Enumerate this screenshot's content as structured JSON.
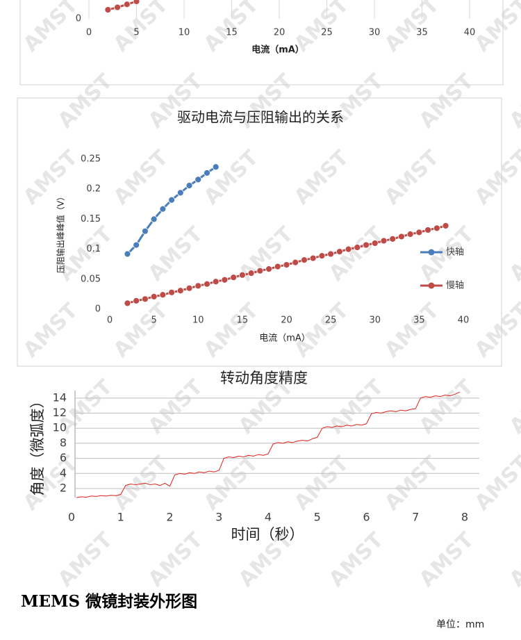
{
  "chart_data": [
    {
      "type": "line",
      "markers": true,
      "x_label": "电流（mA）",
      "xlim": [
        0,
        40
      ],
      "xticks": [
        0,
        5,
        10,
        15,
        20,
        25,
        30,
        35,
        40
      ],
      "ylim": [
        0,
        0.25
      ],
      "yticks": [
        0
      ],
      "grid_x": true,
      "series": [
        {
          "color": "#be4b48",
          "x": [
            2,
            3,
            4,
            5
          ],
          "values": [
            0.015,
            0.019,
            0.024,
            0.029
          ]
        }
      ]
    },
    {
      "type": "line",
      "markers": true,
      "title": "驱动电流与压阻输出的关系",
      "x_label": "电流（mA）",
      "y_label": "压阻输出峰峰值（V）",
      "xlim": [
        0,
        40
      ],
      "xticks": [
        0,
        5,
        10,
        15,
        20,
        25,
        30,
        35,
        40
      ],
      "ylim": [
        0,
        0.25
      ],
      "yticks": [
        0,
        0.05,
        0.1,
        0.15,
        0.2,
        0.25
      ],
      "legend": "right",
      "series": [
        {
          "name": "快轴",
          "color": "#4a7ebb",
          "x": [
            2,
            3,
            4,
            5,
            6,
            7,
            8,
            9,
            10,
            11,
            12
          ],
          "values": [
            0.092,
            0.107,
            0.13,
            0.15,
            0.167,
            0.182,
            0.194,
            0.206,
            0.216,
            0.227,
            0.237
          ]
        },
        {
          "name": "慢轴",
          "color": "#be4b48",
          "x": [
            2,
            3,
            4,
            5,
            6,
            7,
            8,
            9,
            10,
            11,
            12,
            13,
            14,
            15,
            16,
            17,
            18,
            19,
            20,
            21,
            22,
            23,
            24,
            25,
            26,
            27,
            28,
            29,
            30,
            31,
            32,
            33,
            34,
            35,
            36,
            37,
            38
          ],
          "values": [
            0.01,
            0.014,
            0.017,
            0.021,
            0.024,
            0.028,
            0.031,
            0.035,
            0.039,
            0.042,
            0.046,
            0.049,
            0.053,
            0.057,
            0.06,
            0.064,
            0.067,
            0.071,
            0.074,
            0.078,
            0.082,
            0.085,
            0.089,
            0.092,
            0.096,
            0.1,
            0.103,
            0.107,
            0.11,
            0.114,
            0.117,
            0.121,
            0.125,
            0.128,
            0.132,
            0.135,
            0.139
          ]
        }
      ]
    },
    {
      "type": "line",
      "markers": false,
      "title": "转动角度精度",
      "x_label": "时间（秒）",
      "y_label": "角度（微弧度）",
      "xlim": [
        0,
        8
      ],
      "xticks": [
        0,
        1,
        2,
        3,
        4,
        5,
        6,
        7,
        8
      ],
      "ylim": [
        0.8,
        15
      ],
      "yticks": [
        2,
        4,
        6,
        8,
        10,
        12,
        14
      ],
      "grid_y": true,
      "series": [
        {
          "color": "#e0201b",
          "x": [
            0.1,
            0.2,
            0.3,
            0.4,
            0.5,
            0.6,
            0.7,
            0.8,
            0.9,
            1.0,
            1.1,
            1.2,
            1.3,
            1.4,
            1.5,
            1.6,
            1.7,
            1.8,
            1.9,
            2.0,
            2.1,
            2.2,
            2.3,
            2.4,
            2.5,
            2.6,
            2.7,
            2.8,
            2.9,
            3.0,
            3.1,
            3.2,
            3.3,
            3.4,
            3.5,
            3.6,
            3.7,
            3.8,
            3.9,
            4.0,
            4.1,
            4.2,
            4.3,
            4.4,
            4.5,
            4.6,
            4.7,
            4.8,
            4.9,
            5.0,
            5.1,
            5.2,
            5.3,
            5.4,
            5.5,
            5.6,
            5.7,
            5.8,
            5.9,
            6.0,
            6.1,
            6.2,
            6.3,
            6.4,
            6.5,
            6.6,
            6.7,
            6.8,
            6.9,
            7.0,
            7.1,
            7.2,
            7.3,
            7.4,
            7.5,
            7.6,
            7.7,
            7.8,
            7.9
          ],
          "values": [
            0.8,
            0.9,
            0.85,
            1.0,
            0.95,
            1.05,
            1.0,
            1.1,
            1.05,
            1.2,
            2.4,
            2.6,
            2.5,
            2.6,
            2.7,
            2.5,
            2.6,
            2.4,
            2.7,
            2.3,
            3.8,
            4.0,
            3.9,
            4.1,
            4.0,
            4.2,
            4.1,
            4.3,
            4.2,
            4.4,
            6.0,
            6.2,
            6.1,
            6.3,
            6.2,
            6.4,
            6.3,
            6.5,
            6.4,
            6.6,
            7.9,
            8.1,
            8.0,
            8.2,
            8.1,
            8.3,
            8.4,
            8.3,
            8.6,
            8.8,
            10.0,
            10.2,
            10.1,
            10.3,
            10.2,
            10.4,
            10.3,
            10.5,
            10.4,
            10.6,
            11.9,
            12.1,
            12.0,
            12.2,
            12.3,
            12.2,
            12.4,
            12.3,
            12.5,
            12.6,
            14.0,
            14.2,
            14.1,
            14.3,
            14.2,
            14.4,
            14.3,
            14.5,
            14.8
          ]
        }
      ]
    }
  ],
  "watermark": "AMST",
  "section": {
    "heading": "MEMS 微镜封装外形图",
    "unit": "单位：mm"
  }
}
